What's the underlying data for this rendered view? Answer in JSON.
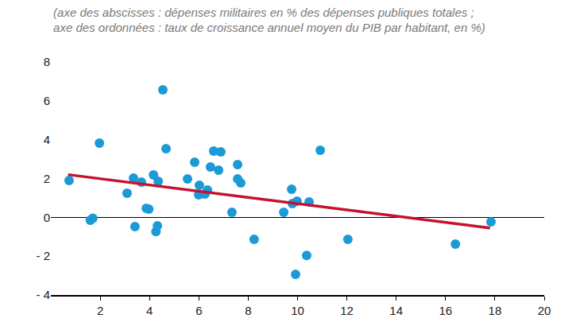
{
  "chart_data": {
    "type": "scatter",
    "title": [
      "(axe des abscisses : dépenses militaires en % des dépenses publiques totales ;",
      "axe des ordonnées : taux de croissance annuel moyen du PIB par habitant, en %)"
    ],
    "xlim": [
      0,
      20
    ],
    "xticks": [
      2,
      4,
      6,
      8,
      10,
      12,
      14,
      16,
      18,
      20
    ],
    "ylim": [
      -4,
      8
    ],
    "yticks": [
      {
        "value": -4,
        "label": "- 4"
      },
      {
        "value": -2,
        "label": "- 2"
      },
      0,
      2,
      4,
      6,
      8
    ],
    "grid": false,
    "series": [
      {
        "type": "scatter",
        "marker": "circle",
        "color": "#1b9ad6",
        "x": [
          0.74,
          1.6,
          1.7,
          1.97,
          3.09,
          3.35,
          3.41,
          3.67,
          3.87,
          3.97,
          4.16,
          4.26,
          4.32,
          4.35,
          4.54,
          4.67,
          5.54,
          5.83,
          5.99,
          6.02,
          6.25,
          6.35,
          6.47,
          6.6,
          6.8,
          6.89,
          7.34,
          7.57,
          7.57,
          7.7,
          8.24,
          9.44,
          9.76,
          9.79,
          9.92,
          9.98,
          10.37,
          10.47,
          10.92,
          12.04,
          16.4,
          17.84
        ],
        "values": [
          1.9,
          -0.15,
          -0.05,
          3.82,
          1.24,
          2.02,
          -0.48,
          1.82,
          0.46,
          0.42,
          2.18,
          -0.73,
          -0.44,
          1.86,
          6.57,
          3.54,
          1.98,
          2.84,
          1.16,
          1.65,
          1.2,
          1.41,
          2.59,
          3.41,
          2.43,
          3.37,
          0.26,
          2.72,
          1.98,
          1.77,
          -1.13,
          0.26,
          1.45,
          0.71,
          -2.94,
          0.83,
          -1.96,
          0.79,
          3.45,
          -1.13,
          -1.38,
          -0.23
        ]
      },
      {
        "type": "line",
        "line_style": "solid",
        "color": "#c4122f",
        "x": [
          0.7,
          17.8
        ],
        "values": [
          2.2,
          -0.55
        ]
      }
    ]
  }
}
